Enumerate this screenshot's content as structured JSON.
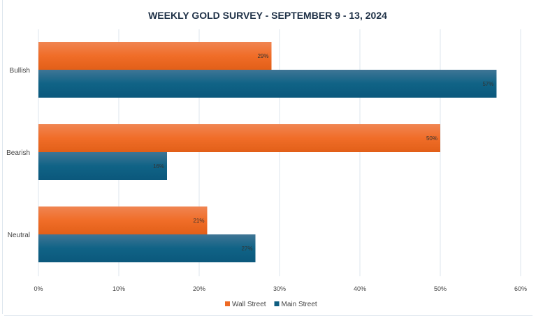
{
  "chart_data": {
    "type": "bar",
    "orientation": "horizontal",
    "title": "WEEKLY GOLD SURVEY - SEPTEMBER 9 - 13, 2024",
    "xlabel": "",
    "ylabel": "",
    "categories": [
      "Bullish",
      "Bearish",
      "Neutral"
    ],
    "series": [
      {
        "name": "Wall Street",
        "values": [
          29,
          50,
          21
        ],
        "labels": [
          "29%",
          "50%",
          "21%"
        ],
        "color": "#ee6a24"
      },
      {
        "name": "Main Street",
        "values": [
          57,
          16,
          27
        ],
        "labels": [
          "57%",
          "16%",
          "27%"
        ],
        "color": "#0e5d80"
      }
    ],
    "xlim": [
      0,
      60
    ],
    "xticks": [
      "0%",
      "10%",
      "20%",
      "30%",
      "40%",
      "50%",
      "60%"
    ],
    "grid": true,
    "legend": "bottom",
    "colors": {
      "title": "#1f3147",
      "grid": "#dde6ee",
      "text": "#444444"
    }
  }
}
